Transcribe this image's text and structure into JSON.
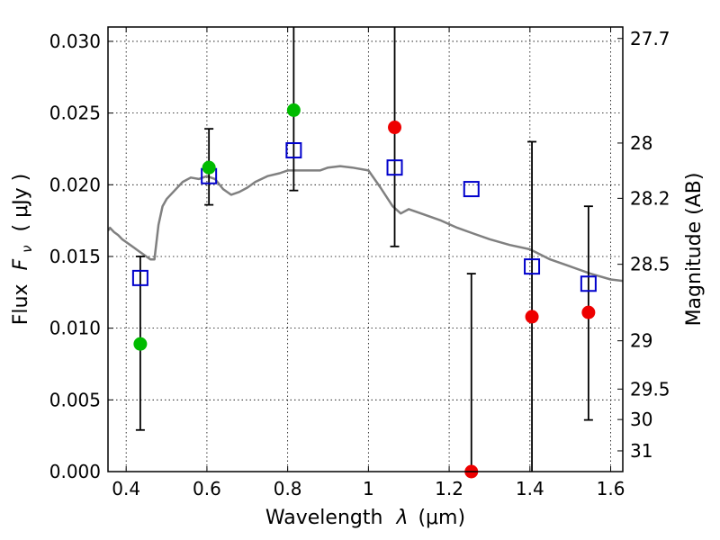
{
  "chart_data": {
    "type": "scatter",
    "xlabel": "Wavelength",
    "xlabel_symbol": "λ",
    "xlabel_unit": "(μm)",
    "ylabel": "Flux",
    "ylabel_symbol": "F",
    "ylabel_subscript": "ν",
    "ylabel_unit": "( μJy )",
    "y2label": "Magnitude (AB)",
    "xlim": [
      0.355,
      1.63
    ],
    "ylim": [
      0.0,
      0.031
    ],
    "grid": true,
    "x_ticks": [
      "0.4",
      "0.6",
      "0.8",
      "1",
      "1.2",
      "1.4",
      "1.6"
    ],
    "y_ticks": [
      "0.000",
      "0.005",
      "0.010",
      "0.015",
      "0.020",
      "0.025",
      "0.030"
    ],
    "mag_ticks": [
      "27.7",
      "28",
      "28.2",
      "28.5",
      "29",
      "29.5",
      "30",
      "31"
    ],
    "colors": {
      "model": "#808080",
      "model_points": "#0000cc",
      "green_points": "#00bb00",
      "red_points": "#ee0000",
      "error_bars": "#000000"
    },
    "model_spectrum": {
      "x": [
        0.355,
        0.36,
        0.37,
        0.38,
        0.39,
        0.4,
        0.41,
        0.42,
        0.43,
        0.44,
        0.45,
        0.46,
        0.47,
        0.48,
        0.49,
        0.5,
        0.52,
        0.54,
        0.56,
        0.58,
        0.6,
        0.62,
        0.64,
        0.66,
        0.68,
        0.7,
        0.72,
        0.75,
        0.78,
        0.8,
        0.82,
        0.85,
        0.88,
        0.9,
        0.93,
        0.96,
        1.0,
        1.03,
        1.06,
        1.08,
        1.1,
        1.12,
        1.15,
        1.18,
        1.22,
        1.26,
        1.3,
        1.35,
        1.4,
        1.45,
        1.5,
        1.55,
        1.6,
        1.63
      ],
      "flux": [
        0.0168,
        0.017,
        0.0167,
        0.0165,
        0.0162,
        0.016,
        0.0158,
        0.0156,
        0.0154,
        0.0152,
        0.015,
        0.0148,
        0.0148,
        0.0172,
        0.0185,
        0.019,
        0.0196,
        0.0202,
        0.0205,
        0.0204,
        0.0206,
        0.0204,
        0.0197,
        0.0193,
        0.0195,
        0.0198,
        0.0202,
        0.0206,
        0.0208,
        0.021,
        0.021,
        0.021,
        0.021,
        0.0212,
        0.0213,
        0.0212,
        0.021,
        0.0198,
        0.0185,
        0.018,
        0.0183,
        0.0181,
        0.0178,
        0.0175,
        0.017,
        0.0166,
        0.0162,
        0.0158,
        0.0155,
        0.0148,
        0.0143,
        0.0138,
        0.0134,
        0.0133
      ]
    },
    "model_points": {
      "name": "model",
      "x": [
        0.435,
        0.605,
        0.815,
        1.065,
        1.255,
        1.405,
        1.545
      ],
      "y": [
        0.0135,
        0.0206,
        0.0224,
        0.0212,
        0.0197,
        0.0143,
        0.0131
      ]
    },
    "observed_points": [
      {
        "x": 0.435,
        "y": 0.0089,
        "yerr_low": 0.0029,
        "yerr_high": 0.015,
        "color": "green"
      },
      {
        "x": 0.605,
        "y": 0.0212,
        "yerr_low": 0.0186,
        "yerr_high": 0.0239,
        "color": "green"
      },
      {
        "x": 0.815,
        "y": 0.0252,
        "yerr_low": 0.0196,
        "yerr_high": 0.031,
        "color": "green"
      },
      {
        "x": 1.065,
        "y": 0.024,
        "yerr_low": 0.0157,
        "yerr_high": 0.031,
        "color": "red"
      },
      {
        "x": 1.255,
        "y": 0.0,
        "yerr_low": 0.0,
        "yerr_high": 0.0138,
        "color": "red"
      },
      {
        "x": 1.405,
        "y": 0.0108,
        "yerr_low": 0.0,
        "yerr_high": 0.023,
        "color": "red"
      },
      {
        "x": 1.545,
        "y": 0.0111,
        "yerr_low": 0.0036,
        "yerr_high": 0.0185,
        "color": "red"
      }
    ]
  }
}
